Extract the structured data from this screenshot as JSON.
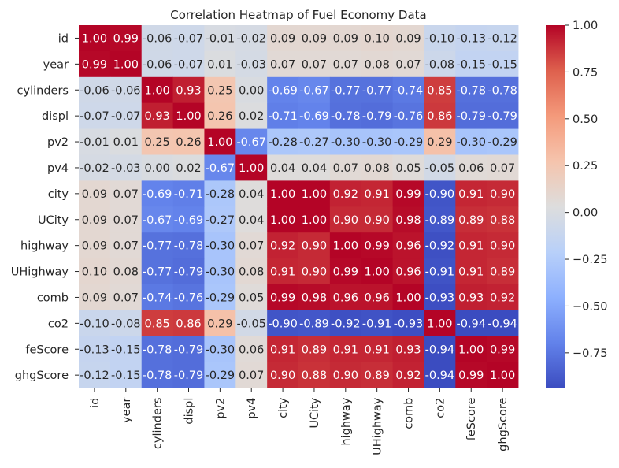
{
  "chart_data": {
    "type": "heatmap",
    "title": "Correlation Heatmap of Fuel Economy Data",
    "rows": [
      "id",
      "year",
      "cylinders",
      "displ",
      "pv2",
      "pv4",
      "city",
      "UCity",
      "highway",
      "UHighway",
      "comb",
      "co2",
      "feScore",
      "ghgScore"
    ],
    "columns": [
      "id",
      "year",
      "cylinders",
      "displ",
      "pv2",
      "pv4",
      "city",
      "UCity",
      "highway",
      "UHighway",
      "comb",
      "co2",
      "feScore",
      "ghgScore"
    ],
    "values": [
      [
        1.0,
        0.99,
        -0.06,
        -0.07,
        -0.01,
        -0.02,
        0.09,
        0.09,
        0.09,
        0.1,
        0.09,
        -0.1,
        -0.13,
        -0.12
      ],
      [
        0.99,
        1.0,
        -0.06,
        -0.07,
        0.01,
        -0.03,
        0.07,
        0.07,
        0.07,
        0.08,
        0.07,
        -0.08,
        -0.15,
        -0.15
      ],
      [
        -0.06,
        -0.06,
        1.0,
        0.93,
        0.25,
        -0.0,
        -0.69,
        -0.67,
        -0.77,
        -0.77,
        -0.74,
        0.85,
        -0.78,
        -0.78
      ],
      [
        -0.07,
        -0.07,
        0.93,
        1.0,
        0.26,
        0.02,
        -0.71,
        -0.69,
        -0.78,
        -0.79,
        -0.76,
        0.86,
        -0.79,
        -0.79
      ],
      [
        -0.01,
        0.01,
        0.25,
        0.26,
        1.0,
        -0.67,
        -0.28,
        -0.27,
        -0.3,
        -0.3,
        -0.29,
        0.29,
        -0.3,
        -0.29
      ],
      [
        -0.02,
        -0.03,
        -0.0,
        0.02,
        -0.67,
        1.0,
        0.04,
        0.04,
        0.07,
        0.08,
        0.05,
        -0.05,
        0.06,
        0.07
      ],
      [
        0.09,
        0.07,
        -0.69,
        -0.71,
        -0.28,
        0.04,
        1.0,
        1.0,
        0.92,
        0.91,
        0.99,
        -0.9,
        0.91,
        0.9
      ],
      [
        0.09,
        0.07,
        -0.67,
        -0.69,
        -0.27,
        0.04,
        1.0,
        1.0,
        0.9,
        0.9,
        0.98,
        -0.89,
        0.89,
        0.88
      ],
      [
        0.09,
        0.07,
        -0.77,
        -0.78,
        -0.3,
        0.07,
        0.92,
        0.9,
        1.0,
        0.99,
        0.96,
        -0.92,
        0.91,
        0.9
      ],
      [
        0.1,
        0.08,
        -0.77,
        -0.79,
        -0.3,
        0.08,
        0.91,
        0.9,
        0.99,
        1.0,
        0.96,
        -0.91,
        0.91,
        0.89
      ],
      [
        0.09,
        0.07,
        -0.74,
        -0.76,
        -0.29,
        0.05,
        0.99,
        0.98,
        0.96,
        0.96,
        1.0,
        -0.93,
        0.93,
        0.92
      ],
      [
        -0.1,
        -0.08,
        0.85,
        0.86,
        0.29,
        -0.05,
        -0.9,
        -0.89,
        -0.92,
        -0.91,
        -0.93,
        1.0,
        -0.94,
        -0.94
      ],
      [
        -0.13,
        -0.15,
        -0.78,
        -0.79,
        -0.3,
        0.06,
        0.91,
        0.89,
        0.91,
        0.91,
        0.93,
        -0.94,
        1.0,
        0.99
      ],
      [
        -0.12,
        -0.15,
        -0.78,
        -0.79,
        -0.29,
        0.07,
        0.9,
        0.88,
        0.9,
        0.89,
        0.92,
        -0.94,
        0.99,
        1.0
      ]
    ],
    "value_format_decimals": 2,
    "colormap": "coolwarm",
    "color_range": [
      -0.94,
      1.0
    ],
    "colorbar_ticks": [
      1.0,
      0.75,
      0.5,
      0.25,
      0.0,
      -0.25,
      -0.5,
      -0.75
    ],
    "colorbar_tick_labels": [
      "1.00",
      "0.75",
      "0.50",
      "0.25",
      "0.00",
      "−0.25",
      "−0.50",
      "−0.75"
    ],
    "colorbar_position": "right",
    "grid": false,
    "text_color": "#262626"
  }
}
